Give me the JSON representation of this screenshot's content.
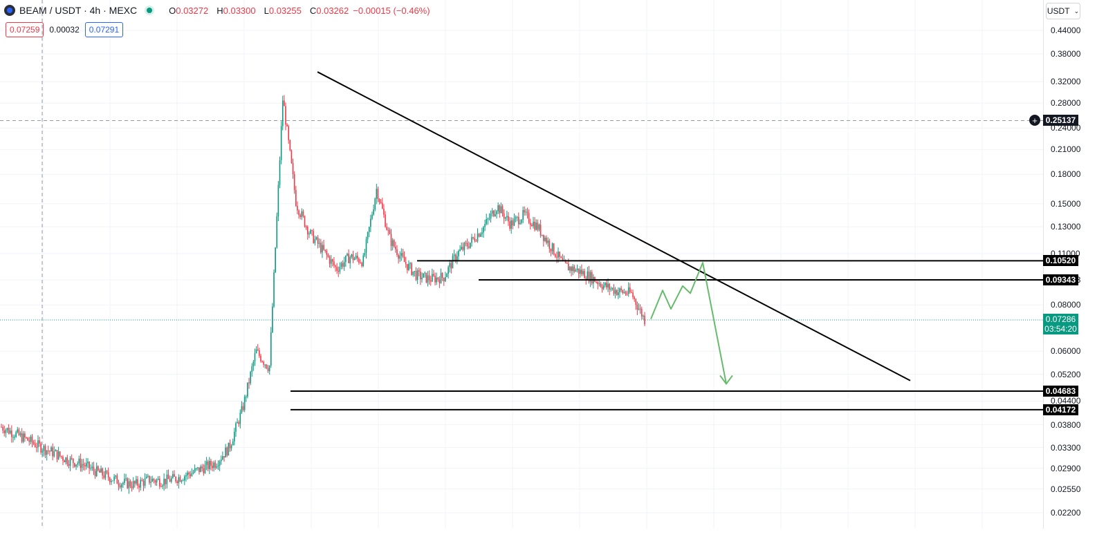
{
  "header": {
    "title": "BEAM / USDT · 4h · MEXC",
    "ohlc": [
      {
        "k": "O",
        "v": "0.03272"
      },
      {
        "k": "H",
        "v": "0.03300"
      },
      {
        "k": "L",
        "v": "0.03255"
      },
      {
        "k": "C",
        "v": "0.03262"
      }
    ],
    "change": "−0.00015 (−0.46%)"
  },
  "bidask": {
    "bid": "0.07259",
    "spread": "0.00032",
    "ask": "0.07291"
  },
  "currency_selector": {
    "label": "USDT",
    "icon": "chevron-down-icon"
  },
  "colors": {
    "up": "#089981",
    "down": "#f23645",
    "projection": "#66bb6a",
    "accent": "#2962ff"
  },
  "price_axis": {
    "scale": "log",
    "ticks": [
      "0.44000",
      "0.38000",
      "0.32000",
      "0.28000",
      "0.24000",
      "0.21000",
      "0.18000",
      "0.15000",
      "0.13000",
      "0.11000",
      "0.09343",
      "0.08000",
      "0.06000",
      "0.05200",
      "0.04400",
      "0.03800",
      "0.03300",
      "0.02900",
      "0.02550",
      "0.02200"
    ]
  },
  "level_tags": [
    {
      "value": "0.25137",
      "style": "crosshair"
    },
    {
      "value": "0.10520",
      "style": "horizontal-line"
    },
    {
      "value": "0.09343",
      "style": "horizontal-line"
    },
    {
      "value": "0.04683",
      "style": "horizontal-line"
    },
    {
      "value": "0.04172",
      "style": "horizontal-line"
    }
  ],
  "current_price": {
    "value": "0.07286",
    "countdown": "03:54:20"
  },
  "chart_data": {
    "type": "candlestick",
    "interval": "4h",
    "y_scale": "log",
    "price_path": [
      0.0375,
      0.036,
      0.0345,
      0.033,
      0.0318,
      0.0305,
      0.0298,
      0.0285,
      0.0275,
      0.0265,
      0.0262,
      0.027,
      0.0268,
      0.0272,
      0.028,
      0.029,
      0.03,
      0.033,
      0.042,
      0.06,
      0.054,
      0.29,
      0.15,
      0.125,
      0.112,
      0.1,
      0.108,
      0.105,
      0.165,
      0.12,
      0.105,
      0.096,
      0.094,
      0.095,
      0.11,
      0.118,
      0.13,
      0.148,
      0.132,
      0.14,
      0.13,
      0.115,
      0.102,
      0.099,
      0.095,
      0.09,
      0.087,
      0.086,
      0.073
    ],
    "drawings": {
      "trendline": {
        "from": [
          0.34
        ],
        "to": [
          0.05
        ]
      },
      "horizontal_levels": [
        0.1052,
        0.09343,
        0.04683,
        0.04172
      ],
      "projection_path": [
        0.0733,
        0.0875,
        0.078,
        0.09,
        0.086,
        0.104,
        0.049
      ]
    }
  }
}
